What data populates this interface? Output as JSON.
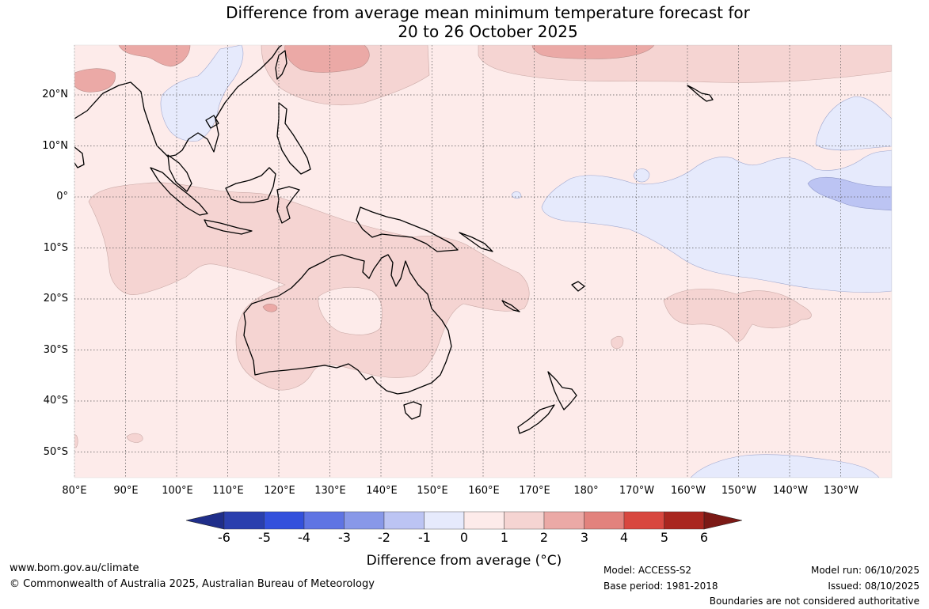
{
  "title": {
    "line1": "Difference from average mean minimum temperature forecast for",
    "line2": "20 to 26 October 2025"
  },
  "map": {
    "lat_labels": [
      "20°N",
      "10°N",
      "0°",
      "10°S",
      "20°S",
      "30°S",
      "40°S",
      "50°S"
    ],
    "lon_labels": [
      "80°E",
      "90°E",
      "100°E",
      "110°E",
      "120°E",
      "130°E",
      "140°E",
      "150°E",
      "160°E",
      "170°E",
      "180°",
      "170°W",
      "160°W",
      "150°W",
      "140°W",
      "130°W"
    ]
  },
  "colorbar": {
    "ticks": [
      "-6",
      "-5",
      "-4",
      "-3",
      "-2",
      "-1",
      "0",
      "1",
      "2",
      "3",
      "4",
      "5",
      "6"
    ],
    "label": "Difference from average (°C)",
    "colors": [
      "#1f2e8a",
      "#2a3fae",
      "#3350dc",
      "#5f74e3",
      "#8898e8",
      "#bcc4f3",
      "#e6eafc",
      "#fdebea",
      "#f5d4d2",
      "#eba9a6",
      "#e2827d",
      "#d8473f",
      "#a9261f",
      "#7b1915"
    ]
  },
  "footer": {
    "website": "www.bom.gov.au/climate",
    "copyright": "© Commonwealth of Australia 2025, Australian Bureau of Meteorology",
    "model": "Model: ACCESS-S2",
    "base_period": "Base period: 1981-2018",
    "model_run": "Model run: 06/10/2025",
    "issued": "Issued: 08/10/2025",
    "disclaimer": "Boundaries are not considered authoritative"
  }
}
